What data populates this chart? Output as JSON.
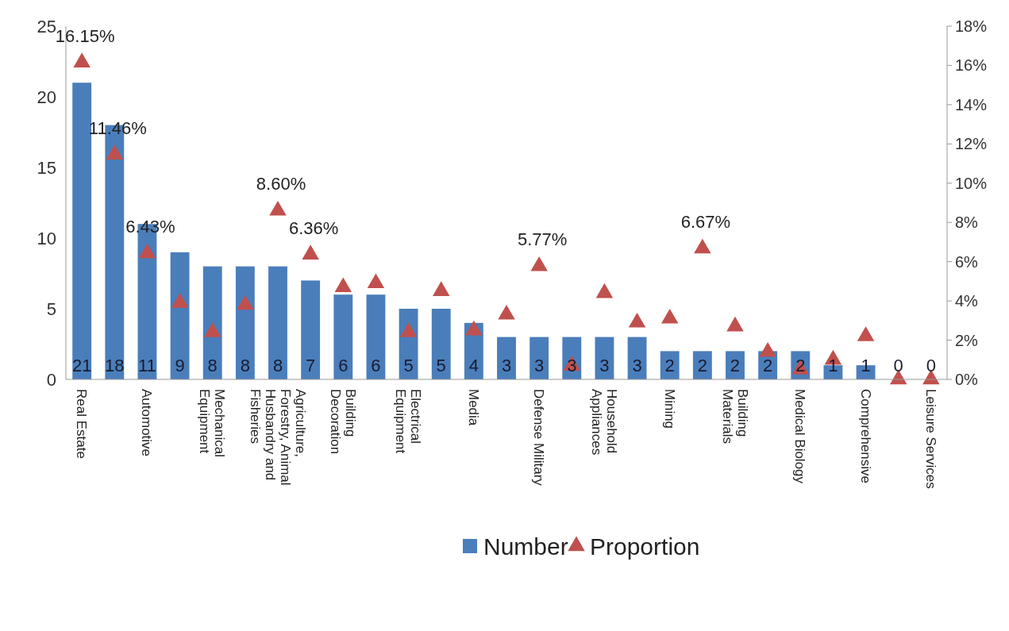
{
  "chart_data": {
    "type": "bar",
    "categories": [
      "Real Estate",
      null,
      "Automotive",
      null,
      "Mechanical Equipment",
      null,
      "Agriculture, Forestry, Animal Husbandry and Fisheries",
      null,
      "Building Decoration",
      null,
      "Electrical Equipment",
      null,
      "Media",
      null,
      "Defense Military",
      null,
      "Household Appliances",
      null,
      "Mining",
      null,
      "Building Materials",
      null,
      "Medical Biology",
      null,
      "Comprehensive",
      null,
      "Leisure Services"
    ],
    "series": [
      {
        "name": "Number",
        "color": "#4a7ebb",
        "values": [
          21,
          18,
          11,
          9,
          8,
          8,
          8,
          7,
          6,
          6,
          5,
          5,
          4,
          3,
          3,
          3,
          3,
          3,
          2,
          2,
          2,
          2,
          2,
          1,
          1,
          0,
          0
        ],
        "value_labels": [
          "21",
          "18",
          "11",
          "9",
          "8",
          "8",
          "8",
          "7",
          "6",
          "6",
          "5",
          "5",
          "4",
          "3",
          "3",
          "3",
          "3",
          "3",
          "2",
          "2",
          "2",
          "2",
          "2",
          "1",
          "1",
          "0",
          "0"
        ]
      },
      {
        "name": "Proportion",
        "type": "scatter",
        "axis": "y2",
        "marker": "triangle",
        "color": "#c0504d",
        "values": [
          16.15,
          11.46,
          6.43,
          3.9,
          2.4,
          3.8,
          8.6,
          6.36,
          4.7,
          4.9,
          2.4,
          4.5,
          2.5,
          3.3,
          5.77,
          0.7,
          4.4,
          2.9,
          3.1,
          6.67,
          2.7,
          1.4,
          0.5,
          1.0,
          2.2,
          0,
          0
        ],
        "value_labels": [
          "16.15%",
          "11.46%",
          "6.43%",
          null,
          null,
          null,
          "8.60%",
          "6.36%",
          null,
          null,
          null,
          null,
          null,
          null,
          "5.77%",
          null,
          null,
          null,
          null,
          "6.67%",
          null,
          null,
          null,
          null,
          null,
          null,
          null
        ]
      }
    ],
    "ylim": [
      0,
      25
    ],
    "yticks": [
      0,
      5,
      10,
      15,
      20,
      25
    ],
    "y2lim": [
      0,
      18
    ],
    "y2ticks": [
      {
        "value": 0,
        "label": "0%"
      },
      {
        "value": 2,
        "label": "2%"
      },
      {
        "value": 4,
        "label": "4%"
      },
      {
        "value": 6,
        "label": "6%"
      },
      {
        "value": 8,
        "label": "8%"
      },
      {
        "value": 10,
        "label": "10%"
      },
      {
        "value": 12,
        "label": "12%"
      },
      {
        "value": 14,
        "label": "14%"
      },
      {
        "value": 16,
        "label": "16%"
      },
      {
        "value": 18,
        "label": "18%"
      }
    ],
    "grid": false,
    "legend": "bottom"
  }
}
